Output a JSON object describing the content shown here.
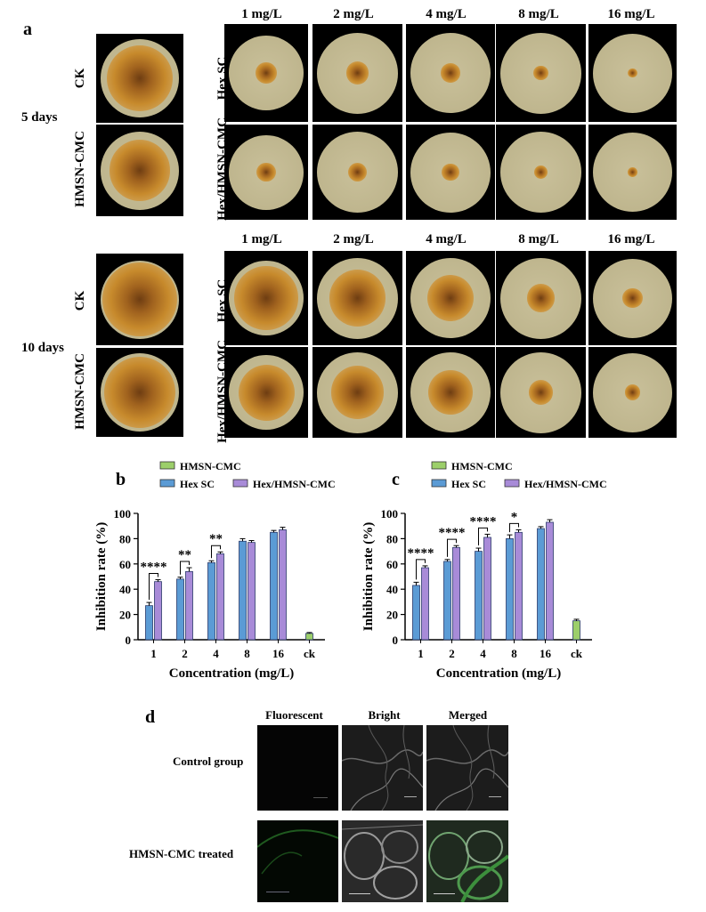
{
  "panel_a": {
    "letter": "a",
    "time_labels": [
      "5 days",
      "10 days"
    ],
    "concentrations": [
      "1 mg/L",
      "2 mg/L",
      "4 mg/L",
      "8 mg/L",
      "16 mg/L"
    ],
    "left_row_labels": [
      "CK",
      "HMSN-CMC"
    ],
    "right_row_labels": [
      "Hex SC",
      "Hex/HMSN-CMC"
    ],
    "colony_fraction_day5": {
      "ck": 0.85,
      "hmsn": 0.78,
      "hex_sc": [
        0.28,
        0.28,
        0.24,
        0.18,
        0.12
      ],
      "hex_hmsn": [
        0.26,
        0.24,
        0.22,
        0.17,
        0.12
      ]
    },
    "colony_fraction_day10": {
      "ck": 0.95,
      "hmsn": 0.92,
      "hex_sc": [
        0.85,
        0.7,
        0.58,
        0.35,
        0.25
      ],
      "hex_hmsn": [
        0.75,
        0.65,
        0.55,
        0.3,
        0.2
      ]
    },
    "colors": {
      "agar": "#c9c09a",
      "colony": "#c78a2c",
      "colony_dark": "#6e3d12"
    }
  },
  "chart_data": [
    {
      "panel": "b",
      "type": "bar",
      "categories": [
        "1",
        "2",
        "4",
        "8",
        "16",
        "ck"
      ],
      "series": [
        {
          "name": "HMSN-CMC",
          "values": [
            null,
            null,
            null,
            null,
            null,
            5
          ],
          "errors": [
            null,
            null,
            null,
            null,
            null,
            0.7
          ],
          "color": "#9ccf6a"
        },
        {
          "name": "Hex SC",
          "values": [
            27,
            48,
            61,
            78,
            85,
            null
          ],
          "errors": [
            2.5,
            1.5,
            1.5,
            2,
            1.5,
            null
          ],
          "color": "#5b9bd5"
        },
        {
          "name": "Hex/HMSN-CMC",
          "values": [
            46,
            54,
            68,
            77,
            87,
            null
          ],
          "errors": [
            1.5,
            3,
            1.5,
            1.5,
            2,
            null
          ],
          "color": "#a88bd8"
        }
      ],
      "significance": [
        "****",
        "**",
        "**"
      ],
      "xlabel": "Concentration (mg/L)",
      "ylabel": "Inhibition rate (%)",
      "ylim": [
        0,
        100
      ],
      "yticks": [
        "0",
        "20",
        "40",
        "60",
        "80",
        "100"
      ]
    },
    {
      "panel": "c",
      "type": "bar",
      "categories": [
        "1",
        "2",
        "4",
        "8",
        "16",
        "ck"
      ],
      "series": [
        {
          "name": "HMSN-CMC",
          "values": [
            null,
            null,
            null,
            null,
            null,
            15
          ],
          "errors": [
            null,
            null,
            null,
            null,
            null,
            1.2
          ],
          "color": "#9ccf6a"
        },
        {
          "name": "Hex SC",
          "values": [
            43,
            62,
            70,
            80,
            88,
            null
          ],
          "errors": [
            2.5,
            1.5,
            2.5,
            3,
            1.5,
            null
          ],
          "color": "#5b9bd5"
        },
        {
          "name": "Hex/HMSN-CMC",
          "values": [
            57,
            73,
            81,
            85,
            93,
            null
          ],
          "errors": [
            1.5,
            1.5,
            2.5,
            2,
            2,
            null
          ],
          "color": "#a88bd8"
        }
      ],
      "significance": [
        "****",
        "****",
        "****",
        "*"
      ],
      "xlabel": "Concentration (mg/L)",
      "ylabel": "Inhibition rate (%)",
      "ylim": [
        0,
        100
      ],
      "yticks": [
        "0",
        "20",
        "40",
        "60",
        "80",
        "100"
      ]
    }
  ],
  "panel_d": {
    "letter": "d",
    "columns": [
      "Fluorescent",
      "Bright",
      "Merged"
    ],
    "rows": [
      "Control group",
      "HMSN-CMC treated"
    ]
  }
}
